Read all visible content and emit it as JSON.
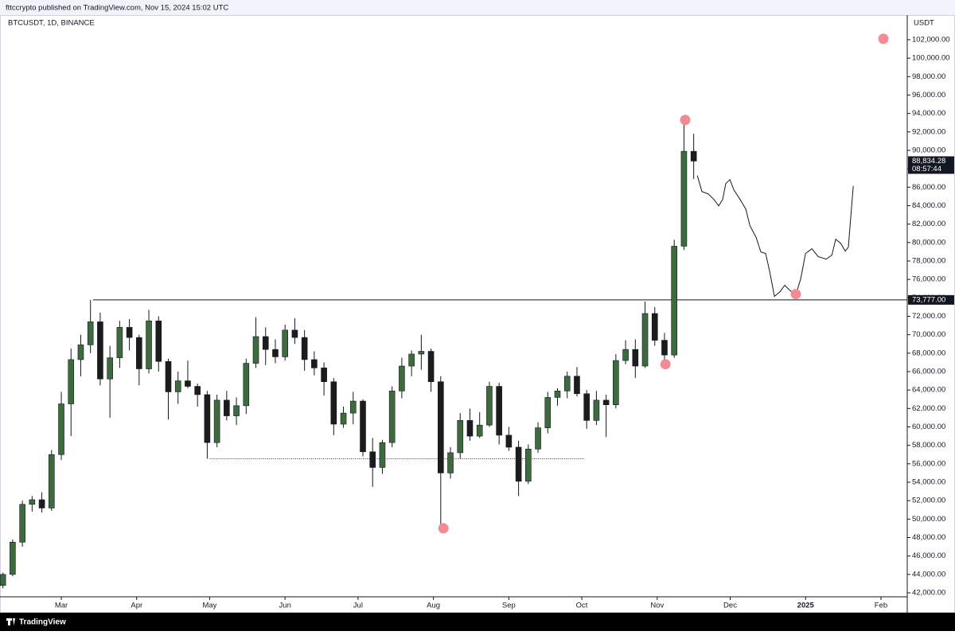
{
  "header": {
    "published": "fttccrypto published on TradingView.com, Nov 15, 2024 15:02 UTC"
  },
  "footer": {
    "brand": "TradingView"
  },
  "chart_data": {
    "type": "candlestick",
    "title": "BTCUSDT, 1D, BINANCE",
    "y_axis_unit": "USDT",
    "up_color": "#3d6b3d",
    "down_color": "#1c1c1c",
    "xlim": [
      34.8,
      407.8
    ],
    "ylim": [
      41570,
      104670
    ],
    "xticks": [
      {
        "value": 60,
        "label": "Mar"
      },
      {
        "value": 91,
        "label": "Apr"
      },
      {
        "value": 121,
        "label": "May"
      },
      {
        "value": 152,
        "label": "Jun"
      },
      {
        "value": 182,
        "label": "Jul"
      },
      {
        "value": 213,
        "label": "Aug"
      },
      {
        "value": 244,
        "label": "Sep"
      },
      {
        "value": 274,
        "label": "Oct"
      },
      {
        "value": 305,
        "label": "Nov"
      },
      {
        "value": 335,
        "label": "Dec"
      },
      {
        "value": 366,
        "label": "2025"
      },
      {
        "value": 397,
        "label": "Feb"
      }
    ],
    "yticks": [
      {
        "value": 42000,
        "label": "42,000.00"
      },
      {
        "value": 44000,
        "label": "44,000.00"
      },
      {
        "value": 46000,
        "label": "46,000.00"
      },
      {
        "value": 48000,
        "label": "48,000.00"
      },
      {
        "value": 50000,
        "label": "50,000.00"
      },
      {
        "value": 52000,
        "label": "52,000.00"
      },
      {
        "value": 54000,
        "label": "54,000.00"
      },
      {
        "value": 56000,
        "label": "56,000.00"
      },
      {
        "value": 58000,
        "label": "58,000.00"
      },
      {
        "value": 60000,
        "label": "60,000.00"
      },
      {
        "value": 62000,
        "label": "62,000.00"
      },
      {
        "value": 64000,
        "label": "64,000.00"
      },
      {
        "value": 66000,
        "label": "66,000.00"
      },
      {
        "value": 68000,
        "label": "68,000.00"
      },
      {
        "value": 70000,
        "label": "70,000.00"
      },
      {
        "value": 72000,
        "label": "72,000.00"
      },
      {
        "value": 74000,
        "label": "74,000.00"
      },
      {
        "value": 76000,
        "label": "76,000.00"
      },
      {
        "value": 78000,
        "label": "78,000.00"
      },
      {
        "value": 80000,
        "label": "80,000.00"
      },
      {
        "value": 82000,
        "label": "82,000.00"
      },
      {
        "value": 84000,
        "label": "84,000.00"
      },
      {
        "value": 86000,
        "label": "86,000.00"
      },
      {
        "value": 88000,
        "label": "88,000.00"
      },
      {
        "value": 90000,
        "label": "90,000.00"
      },
      {
        "value": 92000,
        "label": "92,000.00"
      },
      {
        "value": 94000,
        "label": "94,000.00"
      },
      {
        "value": 96000,
        "label": "96,000.00"
      },
      {
        "value": 98000,
        "label": "98,000.00"
      },
      {
        "value": 100000,
        "label": "100,000.00"
      },
      {
        "value": 102000,
        "label": "102,000.00"
      }
    ],
    "candles": [
      {
        "x": 36,
        "open": 42800,
        "high": 44200,
        "low": 42500,
        "close": 44000
      },
      {
        "x": 40,
        "open": 44000,
        "high": 47800,
        "low": 43800,
        "close": 47500
      },
      {
        "x": 44,
        "open": 47500,
        "high": 52000,
        "low": 47000,
        "close": 51600
      },
      {
        "x": 48,
        "open": 51600,
        "high": 52500,
        "low": 50800,
        "close": 52100
      },
      {
        "x": 52,
        "open": 52100,
        "high": 52900,
        "low": 50700,
        "close": 51200
      },
      {
        "x": 56,
        "open": 51200,
        "high": 57500,
        "low": 50900,
        "close": 57000
      },
      {
        "x": 60,
        "open": 57000,
        "high": 63800,
        "low": 56400,
        "close": 62500
      },
      {
        "x": 64,
        "open": 62500,
        "high": 68500,
        "low": 59000,
        "close": 67300
      },
      {
        "x": 68,
        "open": 67300,
        "high": 70000,
        "low": 65500,
        "close": 68900
      },
      {
        "x": 72,
        "open": 68900,
        "high": 73777,
        "low": 68000,
        "close": 71400
      },
      {
        "x": 76,
        "open": 71400,
        "high": 72400,
        "low": 64500,
        "close": 65200
      },
      {
        "x": 80,
        "open": 65200,
        "high": 68800,
        "low": 61000,
        "close": 67500
      },
      {
        "x": 84,
        "open": 67500,
        "high": 71500,
        "low": 66400,
        "close": 70800
      },
      {
        "x": 88,
        "open": 70800,
        "high": 71700,
        "low": 68300,
        "close": 69700
      },
      {
        "x": 92,
        "open": 69700,
        "high": 70000,
        "low": 64500,
        "close": 66300
      },
      {
        "x": 96,
        "open": 66300,
        "high": 72700,
        "low": 65800,
        "close": 71500
      },
      {
        "x": 100,
        "open": 71500,
        "high": 72000,
        "low": 66000,
        "close": 67100
      },
      {
        "x": 104,
        "open": 67100,
        "high": 67400,
        "low": 60800,
        "close": 63800
      },
      {
        "x": 108,
        "open": 63800,
        "high": 66000,
        "low": 62500,
        "close": 65000
      },
      {
        "x": 112,
        "open": 65000,
        "high": 67200,
        "low": 64200,
        "close": 64400
      },
      {
        "x": 116,
        "open": 64400,
        "high": 64700,
        "low": 62200,
        "close": 63500
      },
      {
        "x": 120,
        "open": 63500,
        "high": 63900,
        "low": 56550,
        "close": 58300
      },
      {
        "x": 124,
        "open": 58300,
        "high": 63500,
        "low": 57800,
        "close": 62900
      },
      {
        "x": 128,
        "open": 62900,
        "high": 63900,
        "low": 60700,
        "close": 61200
      },
      {
        "x": 132,
        "open": 61200,
        "high": 63200,
        "low": 60200,
        "close": 62300
      },
      {
        "x": 136,
        "open": 62300,
        "high": 67400,
        "low": 61400,
        "close": 66900
      },
      {
        "x": 140,
        "open": 66900,
        "high": 71900,
        "low": 66400,
        "close": 69800
      },
      {
        "x": 144,
        "open": 69800,
        "high": 70800,
        "low": 66700,
        "close": 68400
      },
      {
        "x": 148,
        "open": 68400,
        "high": 69500,
        "low": 66900,
        "close": 67600
      },
      {
        "x": 152,
        "open": 67600,
        "high": 71100,
        "low": 67200,
        "close": 70500
      },
      {
        "x": 156,
        "open": 70500,
        "high": 71800,
        "low": 69000,
        "close": 69700
      },
      {
        "x": 160,
        "open": 69700,
        "high": 70500,
        "low": 66100,
        "close": 67300
      },
      {
        "x": 164,
        "open": 67300,
        "high": 68200,
        "low": 65600,
        "close": 66400
      },
      {
        "x": 168,
        "open": 66400,
        "high": 67000,
        "low": 63400,
        "close": 64900
      },
      {
        "x": 172,
        "open": 64900,
        "high": 65300,
        "low": 59100,
        "close": 60300
      },
      {
        "x": 176,
        "open": 60300,
        "high": 62200,
        "low": 59900,
        "close": 61500
      },
      {
        "x": 180,
        "open": 61500,
        "high": 63800,
        "low": 60300,
        "close": 62800
      },
      {
        "x": 184,
        "open": 62800,
        "high": 63000,
        "low": 56800,
        "close": 57300
      },
      {
        "x": 188,
        "open": 57300,
        "high": 58800,
        "low": 53500,
        "close": 55600
      },
      {
        "x": 192,
        "open": 55600,
        "high": 58600,
        "low": 54900,
        "close": 58300
      },
      {
        "x": 196,
        "open": 58300,
        "high": 64400,
        "low": 57800,
        "close": 63900
      },
      {
        "x": 200,
        "open": 63900,
        "high": 67500,
        "low": 63100,
        "close": 66600
      },
      {
        "x": 204,
        "open": 66600,
        "high": 68300,
        "low": 65500,
        "close": 67900
      },
      {
        "x": 208,
        "open": 67900,
        "high": 70000,
        "low": 66200,
        "close": 68200
      },
      {
        "x": 212,
        "open": 68200,
        "high": 68500,
        "low": 63800,
        "close": 64900
      },
      {
        "x": 216,
        "open": 64900,
        "high": 65500,
        "low": 49000,
        "close": 55000
      },
      {
        "x": 220,
        "open": 55000,
        "high": 57800,
        "low": 54400,
        "close": 57200
      },
      {
        "x": 224,
        "open": 57200,
        "high": 61500,
        "low": 56600,
        "close": 60700
      },
      {
        "x": 228,
        "open": 60700,
        "high": 62000,
        "low": 58500,
        "close": 59000
      },
      {
        "x": 232,
        "open": 59000,
        "high": 61600,
        "low": 58800,
        "close": 60200
      },
      {
        "x": 236,
        "open": 60200,
        "high": 64900,
        "low": 60000,
        "close": 64400
      },
      {
        "x": 240,
        "open": 64400,
        "high": 64800,
        "low": 58100,
        "close": 59100
      },
      {
        "x": 244,
        "open": 59100,
        "high": 60000,
        "low": 57400,
        "close": 57800
      },
      {
        "x": 248,
        "open": 57800,
        "high": 58500,
        "low": 52500,
        "close": 54100
      },
      {
        "x": 252,
        "open": 54100,
        "high": 58100,
        "low": 53800,
        "close": 57600
      },
      {
        "x": 256,
        "open": 57600,
        "high": 60500,
        "low": 57200,
        "close": 59900
      },
      {
        "x": 260,
        "open": 59900,
        "high": 63800,
        "low": 59300,
        "close": 63200
      },
      {
        "x": 264,
        "open": 63200,
        "high": 64200,
        "low": 62300,
        "close": 63900
      },
      {
        "x": 268,
        "open": 63900,
        "high": 66000,
        "low": 63100,
        "close": 65500
      },
      {
        "x": 272,
        "open": 65500,
        "high": 66500,
        "low": 63300,
        "close": 63600
      },
      {
        "x": 276,
        "open": 63600,
        "high": 64000,
        "low": 59800,
        "close": 60700
      },
      {
        "x": 280,
        "open": 60700,
        "high": 63900,
        "low": 60200,
        "close": 62900
      },
      {
        "x": 284,
        "open": 62900,
        "high": 63500,
        "low": 58900,
        "close": 62400
      },
      {
        "x": 288,
        "open": 62400,
        "high": 67900,
        "low": 62000,
        "close": 67200
      },
      {
        "x": 292,
        "open": 67200,
        "high": 69400,
        "low": 66800,
        "close": 68400
      },
      {
        "x": 296,
        "open": 68400,
        "high": 69500,
        "low": 65300,
        "close": 66600
      },
      {
        "x": 300,
        "open": 66600,
        "high": 73600,
        "low": 66400,
        "close": 72300
      },
      {
        "x": 304,
        "open": 72300,
        "high": 73000,
        "low": 68800,
        "close": 69400
      },
      {
        "x": 308,
        "open": 69400,
        "high": 70200,
        "low": 66800,
        "close": 67800
      },
      {
        "x": 312,
        "open": 67800,
        "high": 80300,
        "low": 67500,
        "close": 79600
      },
      {
        "x": 316,
        "open": 79600,
        "high": 93300,
        "low": 79200,
        "close": 89900
      },
      {
        "x": 320,
        "open": 89900,
        "high": 91800,
        "low": 86900,
        "close": 88834.28
      }
    ],
    "current_price": {
      "value": 88834.28,
      "label": "88,834.28",
      "countdown": "08:57:44"
    },
    "resistance": {
      "x_start": 73,
      "value": 73777,
      "label": "73,777.00"
    },
    "support": {
      "x": [
        121,
        275
      ],
      "value": 56550
    },
    "projection": {
      "x": [
        321.5,
        323.4,
        326.0,
        328.3,
        330.3,
        331.9,
        333.2,
        334.9,
        336.5,
        339.1,
        341.4,
        343.1,
        345.7,
        347.6,
        349.6,
        351.2,
        353.2,
        355.5,
        357.4,
        359.4,
        362.0,
        364.0,
        366.0,
        368.6,
        371.2,
        374.5,
        376.8,
        378.4,
        380.4,
        382.3,
        383.6,
        384.9,
        385.6
      ],
      "values": [
        87258,
        85534,
        85275,
        84672,
        83982,
        84672,
        86396,
        86827,
        85706,
        84672,
        83637,
        81827,
        80534,
        78982,
        78810,
        76913,
        74154,
        74671,
        75361,
        74844,
        74327,
        76051,
        78810,
        79327,
        78465,
        78206,
        78637,
        80361,
        79930,
        79068,
        79499,
        83810,
        86137
      ]
    },
    "markers": {
      "color": "#f28b95",
      "x": [
        316.5,
        217.1,
        308.4,
        362.0,
        398.0
      ],
      "values": [
        93300,
        49000,
        66800,
        74400,
        102100
      ]
    }
  }
}
